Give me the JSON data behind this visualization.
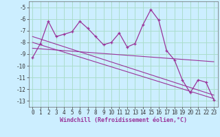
{
  "xlabel": "Windchill (Refroidissement éolien,°C)",
  "bg_color": "#cceeff",
  "grid_color": "#aaddcc",
  "line_color": "#993399",
  "xlim": [
    -0.5,
    23.5
  ],
  "ylim": [
    -13.5,
    -4.5
  ],
  "yticks": [
    -13,
    -12,
    -11,
    -10,
    -9,
    -8,
    -7,
    -6,
    -5
  ],
  "xticks": [
    0,
    1,
    2,
    3,
    4,
    5,
    6,
    7,
    8,
    9,
    10,
    11,
    12,
    13,
    14,
    15,
    16,
    17,
    18,
    19,
    20,
    21,
    22,
    23
  ],
  "hours": [
    0,
    1,
    2,
    3,
    4,
    5,
    6,
    7,
    8,
    9,
    10,
    11,
    12,
    13,
    14,
    15,
    16,
    17,
    18,
    19,
    20,
    21,
    22,
    23
  ],
  "windchill": [
    -9.3,
    -8.1,
    -6.2,
    -7.5,
    -7.3,
    -7.1,
    -6.2,
    -6.8,
    -7.5,
    -8.2,
    -8.0,
    -7.2,
    -8.4,
    -8.1,
    -6.5,
    -5.2,
    -6.1,
    -8.7,
    -9.5,
    -11.2,
    -12.3,
    -11.2,
    -11.4,
    -12.9
  ],
  "trend1_x": [
    0,
    23
  ],
  "trend1_y": [
    -8.5,
    -9.65
  ],
  "trend2_x": [
    0,
    23
  ],
  "trend2_y": [
    -7.5,
    -12.5
  ],
  "trend3_x": [
    0,
    23
  ],
  "trend3_y": [
    -8.0,
    -12.8
  ],
  "tick_fontsize": 5.5,
  "xlabel_fontsize": 6.0
}
